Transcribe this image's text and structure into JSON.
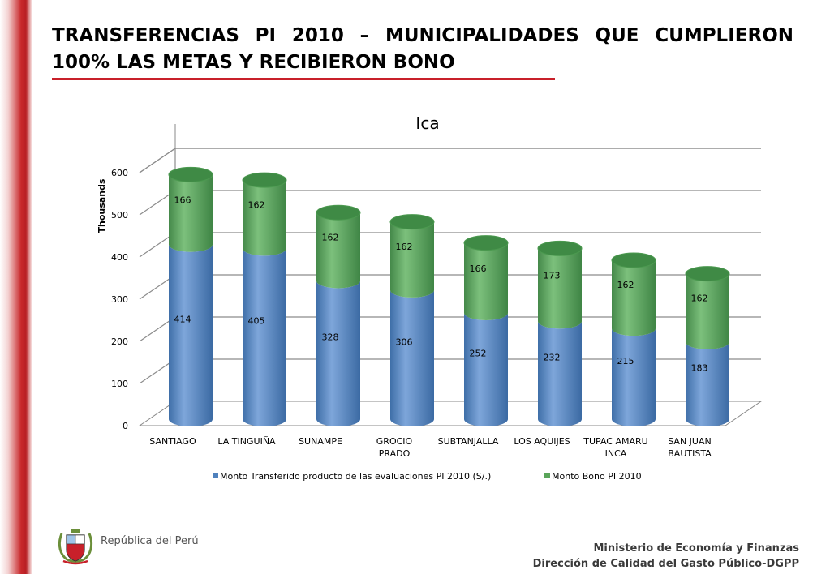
{
  "page": {
    "title": "TRANSFERENCIAS PI 2010 – MUNICIPALIDADES QUE CUMPLIERON 100% LAS METAS Y RECIBIERON BONO"
  },
  "footer": {
    "country": "República del Perú",
    "ministry": "Ministerio de Economía y Finanzas",
    "directorate": "Dirección de Calidad del Gasto Público-DGPP"
  },
  "chart_data": {
    "type": "bar",
    "stacked": true,
    "title": "Ica",
    "ylabel": "Thousands",
    "xlabel": "",
    "ylim": [
      0,
      600
    ],
    "yticks": [
      "0",
      "100",
      "200",
      "300",
      "400",
      "500",
      "600"
    ],
    "categories": [
      "SANTIAGO",
      "LA TINGUIÑA",
      "SUNAMPE",
      "GROCIO PRADO",
      "SUBTANJALLA",
      "LOS AQUIJES",
      "TUPAC AMARU INCA",
      "SAN JUAN BAUTISTA"
    ],
    "category_lines": [
      [
        "SANTIAGO"
      ],
      [
        "LA TINGUIÑA"
      ],
      [
        "SUNAMPE"
      ],
      [
        "GROCIO",
        "PRADO"
      ],
      [
        "SUBTANJALLA"
      ],
      [
        "LOS AQUIJES"
      ],
      [
        "TUPAC AMARU",
        "INCA"
      ],
      [
        "SAN JUAN",
        "BAUTISTA"
      ]
    ],
    "series": [
      {
        "name": "Monto Transferido producto de las evaluaciones PI 2010 (S/.)",
        "color": "#4f81bd",
        "values": [
          414,
          405,
          328,
          306,
          252,
          232,
          215,
          183
        ]
      },
      {
        "name": "Monto Bono PI 2010",
        "color": "#5aa55a",
        "values": [
          166,
          162,
          162,
          162,
          166,
          173,
          162,
          162
        ]
      }
    ],
    "grid": true,
    "legend": "bottom"
  }
}
